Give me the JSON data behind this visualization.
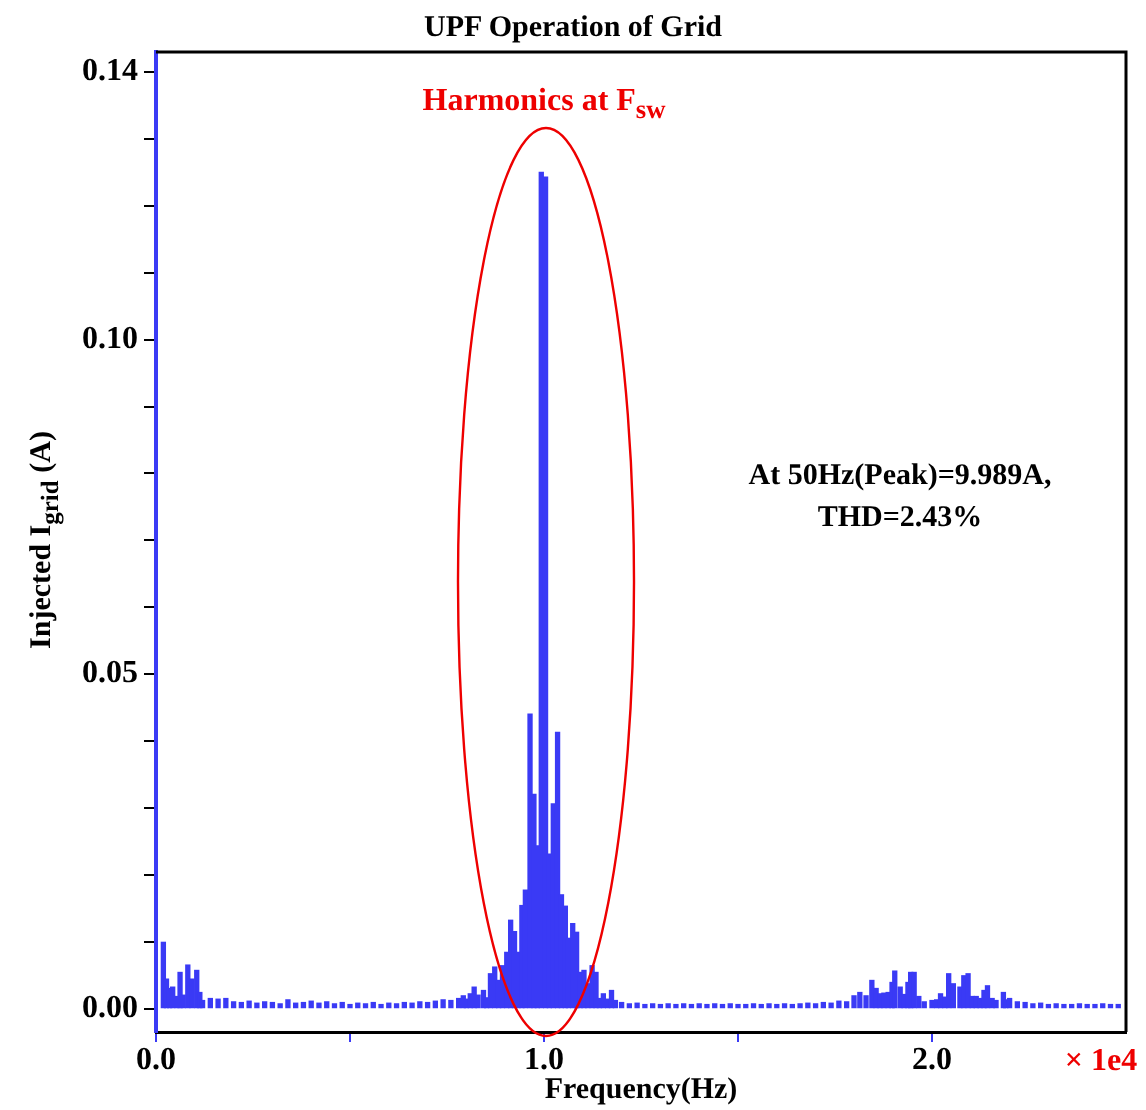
{
  "chart_data": {
    "type": "bar",
    "title": "UPF Operation of Grid",
    "xlabel": "Frequency(Hz)",
    "ylabel": "Injected I$_{grid}$ (A)",
    "annotations": [
      "Harmonics at F$_{sw}$",
      "At 50Hz(Peak)=9.989A,\nTHD=2.43%",
      "× 1e4"
    ],
    "x": [
      0.019,
      0.027,
      0.035,
      0.043,
      0.054,
      0.062,
      0.07,
      0.082,
      0.093,
      0.105,
      0.113,
      0.12,
      0.14,
      0.16,
      0.18,
      0.2,
      0.22,
      0.24,
      0.26,
      0.28,
      0.3,
      0.32,
      0.34,
      0.36,
      0.38,
      0.4,
      0.42,
      0.44,
      0.46,
      0.48,
      0.5,
      0.52,
      0.54,
      0.56,
      0.58,
      0.6,
      0.62,
      0.64,
      0.66,
      0.68,
      0.7,
      0.72,
      0.74,
      0.76,
      0.78,
      0.792,
      0.8,
      0.81,
      0.82,
      0.83,
      0.844,
      0.852,
      0.862,
      0.873,
      0.883,
      0.893,
      0.904,
      0.914,
      0.924,
      0.933,
      0.943,
      0.952,
      0.964,
      0.974,
      0.983,
      0.993,
      1.004,
      1.014,
      1.024,
      1.035,
      1.045,
      1.055,
      1.063,
      1.074,
      1.084,
      1.093,
      1.103,
      1.113,
      1.124,
      1.134,
      1.143,
      1.153,
      1.164,
      1.174,
      1.184,
      1.2,
      1.22,
      1.24,
      1.26,
      1.28,
      1.3,
      1.32,
      1.34,
      1.36,
      1.38,
      1.4,
      1.42,
      1.44,
      1.46,
      1.48,
      1.5,
      1.52,
      1.54,
      1.56,
      1.58,
      1.6,
      1.62,
      1.64,
      1.66,
      1.68,
      1.7,
      1.72,
      1.74,
      1.76,
      1.78,
      1.799,
      1.814,
      1.83,
      1.845,
      1.856,
      1.866,
      1.876,
      1.887,
      1.897,
      1.904,
      1.918,
      1.928,
      1.938,
      1.945,
      1.954,
      1.966,
      1.98,
      2.0,
      2.012,
      2.022,
      2.033,
      2.043,
      2.055,
      2.072,
      2.082,
      2.093,
      2.104,
      2.114,
      2.124,
      2.134,
      2.143,
      2.155,
      2.165,
      2.184,
      2.19,
      2.2,
      2.22,
      2.24,
      2.26,
      2.28,
      2.3,
      2.32,
      2.34,
      2.36,
      2.38,
      2.4,
      2.42,
      2.44,
      2.46,
      2.48
    ],
    "values": [
      0.0099,
      0.0044,
      0.003,
      0.0032,
      0.0018,
      0.0054,
      0.002,
      0.0065,
      0.0044,
      0.0057,
      0.0024,
      0.0012,
      0.0015,
      0.0014,
      0.0015,
      0.001,
      0.0009,
      0.0011,
      0.0008,
      0.001,
      0.0009,
      0.0007,
      0.0013,
      0.0008,
      0.0009,
      0.0011,
      0.0008,
      0.001,
      0.0007,
      0.0009,
      0.0006,
      0.0008,
      0.0007,
      0.0009,
      0.0006,
      0.0008,
      0.0007,
      0.0009,
      0.0008,
      0.001,
      0.0009,
      0.0011,
      0.0013,
      0.0012,
      0.0015,
      0.0019,
      0.0014,
      0.0022,
      0.0032,
      0.002,
      0.0027,
      0.0016,
      0.0052,
      0.0062,
      0.0042,
      0.0064,
      0.0084,
      0.0132,
      0.0115,
      0.0084,
      0.0154,
      0.0177,
      0.044,
      0.032,
      0.0243,
      0.125,
      0.1243,
      0.0231,
      0.0306,
      0.0413,
      0.017,
      0.0153,
      0.0105,
      0.0127,
      0.0114,
      0.0054,
      0.0057,
      0.0037,
      0.0064,
      0.0054,
      0.0015,
      0.0022,
      0.0014,
      0.0027,
      0.0012,
      0.0009,
      0.0007,
      0.0008,
      0.0006,
      0.0007,
      0.0006,
      0.0007,
      0.0006,
      0.0007,
      0.0006,
      0.0007,
      0.0006,
      0.0007,
      0.0006,
      0.0007,
      0.0006,
      0.0006,
      0.0007,
      0.0006,
      0.0007,
      0.0006,
      0.0007,
      0.0006,
      0.0007,
      0.0008,
      0.0007,
      0.0009,
      0.0008,
      0.0011,
      0.001,
      0.0019,
      0.0024,
      0.0019,
      0.0042,
      0.003,
      0.0022,
      0.0023,
      0.0024,
      0.0039,
      0.0056,
      0.0032,
      0.0021,
      0.0039,
      0.0054,
      0.0054,
      0.0018,
      0.001,
      0.0012,
      0.0013,
      0.0022,
      0.0017,
      0.0052,
      0.0037,
      0.0032,
      0.0049,
      0.0052,
      0.0018,
      0.0018,
      0.0015,
      0.0027,
      0.0034,
      0.0015,
      0.0012,
      0.0024,
      0.0013,
      0.0015,
      0.001,
      0.0009,
      0.0007,
      0.0008,
      0.0006,
      0.0007,
      0.0006,
      0.0006,
      0.0007,
      0.0006,
      0.0006,
      0.0007,
      0.0006,
      0.0006
    ],
    "color": "#3a3af5",
    "xlim": [
      0,
      2.5
    ],
    "xticks": [
      {
        "value": 0,
        "label": "0.0"
      },
      {
        "value": 0.5,
        "label": null
      },
      {
        "value": 1,
        "label": "1.0"
      },
      {
        "value": 1.5,
        "label": null
      },
      {
        "value": 2,
        "label": "2.0"
      }
    ],
    "ylim": [
      -0.0035,
      0.143
    ],
    "yticks": [
      {
        "value": 0,
        "label": "0.00"
      },
      {
        "value": 0.01,
        "label": null
      },
      {
        "value": 0.02,
        "label": null
      },
      {
        "value": 0.03,
        "label": null
      },
      {
        "value": 0.04,
        "label": null
      },
      {
        "value": 0.05,
        "label": "0.05"
      },
      {
        "value": 0.06,
        "label": null
      },
      {
        "value": 0.07,
        "label": null
      },
      {
        "value": 0.08,
        "label": null
      },
      {
        "value": 0.09,
        "label": null
      },
      {
        "value": 0.1,
        "label": "0.10"
      },
      {
        "value": 0.11,
        "label": null
      },
      {
        "value": 0.12,
        "label": null
      },
      {
        "value": 0.13,
        "label": null
      },
      {
        "value": 0.14,
        "label": "0.14"
      }
    ],
    "grid": false,
    "legend": false
  }
}
